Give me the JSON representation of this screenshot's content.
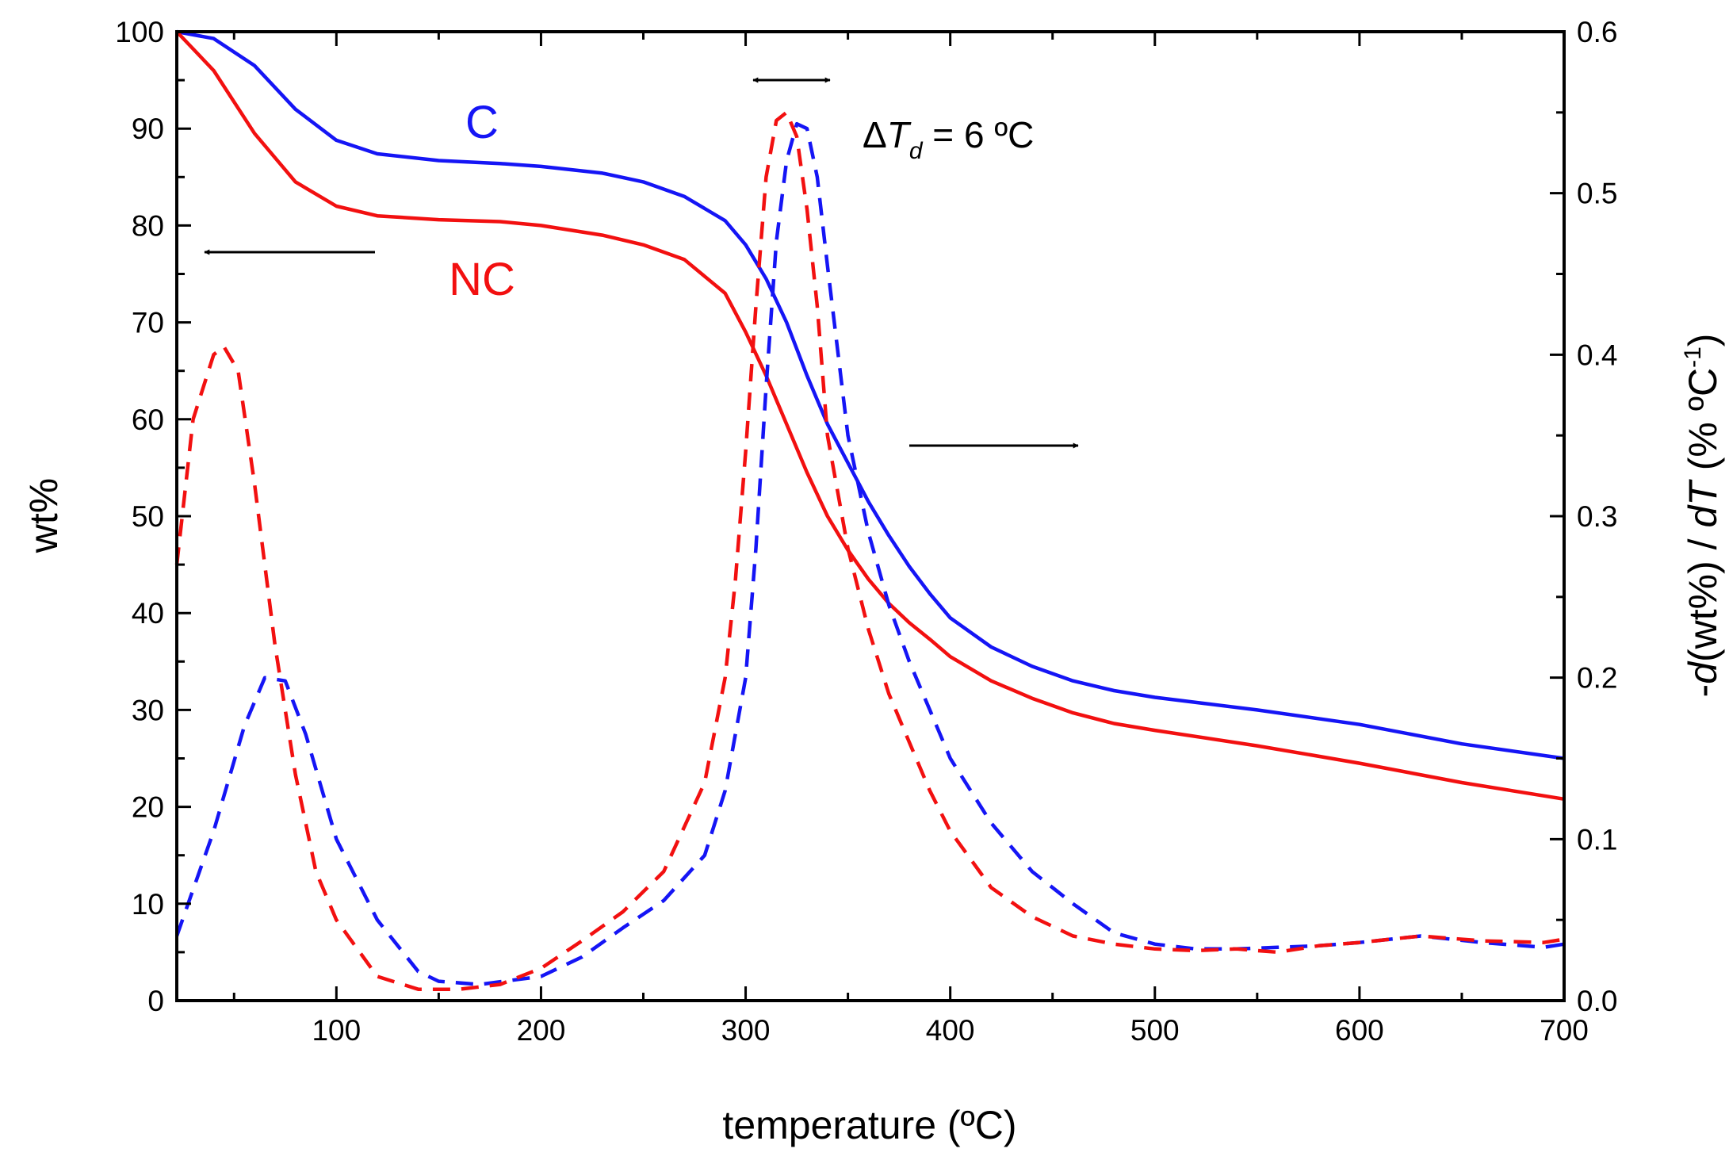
{
  "chart_data": {
    "type": "line",
    "xlabel": "temperature (ºC)",
    "ylabel_left": "wt%",
    "ylabel_right": {
      "prefix": "-",
      "d1": "d",
      "mid": "(wt%) / ",
      "d2": "dT",
      "unit": " (% ºC",
      "sup": "-1",
      "close": ")"
    },
    "xlim": [
      22,
      700
    ],
    "ylim_left": [
      0,
      100
    ],
    "ylim_right": [
      0,
      0.6
    ],
    "x_ticks": [
      100,
      200,
      300,
      400,
      500,
      600,
      700
    ],
    "x_tick_labels": [
      "100",
      "200",
      "300",
      "400",
      "500",
      "600",
      "700"
    ],
    "y_left_ticks": [
      0,
      10,
      20,
      30,
      40,
      50,
      60,
      70,
      80,
      90,
      100
    ],
    "y_left_tick_labels": [
      "0",
      "10",
      "20",
      "30",
      "40",
      "50",
      "60",
      "70",
      "80",
      "90",
      "100"
    ],
    "y_right_ticks": [
      0,
      0.1,
      0.2,
      0.3,
      0.4,
      0.5,
      0.6
    ],
    "y_right_tick_labels": [
      "0.0",
      "0.1",
      "0.2",
      "0.3",
      "0.4",
      "0.5",
      "0.6"
    ],
    "series_labels": {
      "C": "C",
      "NC": "NC"
    },
    "annotation": {
      "delta": "Δ",
      "T": "T",
      "sub": "d",
      "rest": " = 6 ºC"
    },
    "colors": {
      "C": "#1515f5",
      "NC": "#f21010",
      "axis": "#000000"
    },
    "series": [
      {
        "name": "C wt%",
        "axis": "left",
        "style": "solid",
        "color": "#1515f5",
        "x": [
          22,
          40,
          60,
          80,
          100,
          120,
          150,
          180,
          200,
          230,
          250,
          270,
          290,
          300,
          310,
          320,
          330,
          340,
          350,
          360,
          370,
          380,
          390,
          400,
          420,
          440,
          460,
          480,
          500,
          550,
          600,
          650,
          700
        ],
        "y": [
          100,
          99.3,
          96.5,
          92,
          88.8,
          87.4,
          86.7,
          86.4,
          86.1,
          85.4,
          84.5,
          83,
          80.5,
          78,
          74.5,
          70,
          64.5,
          59.5,
          55.5,
          51.5,
          48,
          44.8,
          42,
          39.5,
          36.5,
          34.5,
          33,
          32,
          31.3,
          30,
          28.5,
          26.5,
          25
        ]
      },
      {
        "name": "NC wt%",
        "axis": "left",
        "style": "solid",
        "color": "#f21010",
        "x": [
          22,
          40,
          60,
          80,
          100,
          120,
          150,
          180,
          200,
          230,
          250,
          270,
          290,
          300,
          310,
          320,
          330,
          340,
          350,
          360,
          370,
          380,
          390,
          400,
          420,
          440,
          460,
          480,
          500,
          550,
          600,
          650,
          700
        ],
        "y": [
          100,
          96,
          89.5,
          84.5,
          82,
          81,
          80.6,
          80.4,
          80,
          79,
          78,
          76.5,
          73,
          69,
          64.5,
          59.5,
          54.5,
          50,
          46.5,
          43.5,
          41,
          39,
          37.3,
          35.5,
          33,
          31.2,
          29.7,
          28.6,
          27.9,
          26.3,
          24.5,
          22.5,
          20.8
        ]
      },
      {
        "name": "C -d(wt%)/dT",
        "axis": "right",
        "style": "dashed",
        "color": "#1515f5",
        "x": [
          22,
          40,
          55,
          65,
          75,
          85,
          100,
          120,
          140,
          150,
          170,
          200,
          220,
          240,
          260,
          280,
          290,
          300,
          305,
          310,
          315,
          320,
          325,
          330,
          335,
          340,
          350,
          360,
          370,
          380,
          390,
          400,
          420,
          440,
          460,
          480,
          500,
          520,
          540,
          560,
          580,
          600,
          630,
          660,
          690,
          700
        ],
        "y": [
          0.04,
          0.105,
          0.17,
          0.2,
          0.198,
          0.165,
          0.1,
          0.05,
          0.018,
          0.012,
          0.01,
          0.015,
          0.027,
          0.045,
          0.062,
          0.09,
          0.13,
          0.2,
          0.28,
          0.38,
          0.47,
          0.52,
          0.543,
          0.54,
          0.51,
          0.455,
          0.35,
          0.29,
          0.245,
          0.21,
          0.18,
          0.15,
          0.11,
          0.08,
          0.06,
          0.042,
          0.035,
          0.032,
          0.032,
          0.033,
          0.034,
          0.036,
          0.04,
          0.036,
          0.033,
          0.035
        ]
      },
      {
        "name": "NC -d(wt%)/dT",
        "axis": "right",
        "style": "dashed",
        "color": "#f21010",
        "x": [
          22,
          30,
          40,
          45,
          52,
          60,
          70,
          80,
          90,
          100,
          120,
          140,
          160,
          180,
          200,
          220,
          240,
          260,
          280,
          290,
          295,
          300,
          305,
          310,
          315,
          320,
          325,
          330,
          335,
          340,
          350,
          360,
          370,
          380,
          390,
          400,
          420,
          440,
          460,
          480,
          500,
          520,
          540,
          560,
          580,
          600,
          630,
          660,
          690,
          700
        ],
        "y": [
          0.27,
          0.36,
          0.4,
          0.405,
          0.39,
          0.32,
          0.22,
          0.14,
          0.08,
          0.05,
          0.015,
          0.007,
          0.007,
          0.01,
          0.02,
          0.037,
          0.055,
          0.08,
          0.135,
          0.2,
          0.26,
          0.34,
          0.43,
          0.51,
          0.545,
          0.55,
          0.535,
          0.49,
          0.43,
          0.35,
          0.28,
          0.23,
          0.19,
          0.16,
          0.13,
          0.105,
          0.07,
          0.052,
          0.04,
          0.035,
          0.032,
          0.031,
          0.032,
          0.03,
          0.034,
          0.036,
          0.04,
          0.037,
          0.036,
          0.038
        ]
      }
    ]
  }
}
